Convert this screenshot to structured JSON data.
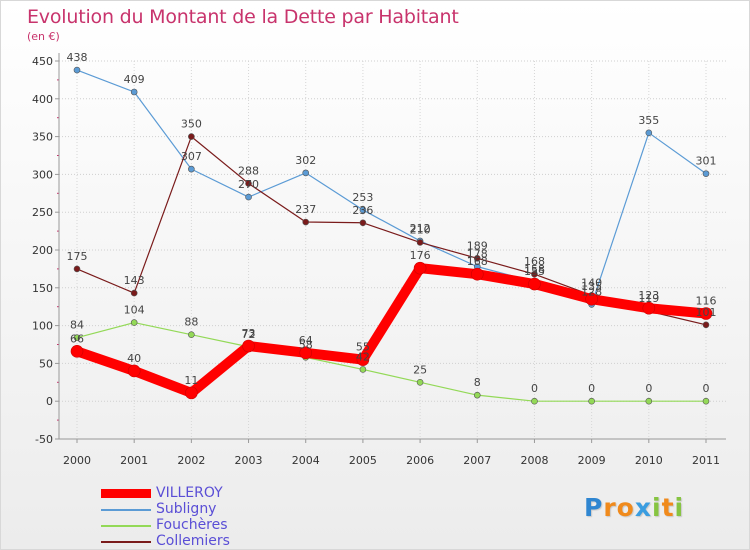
{
  "title": "Evolution du Montant de la Dette par Habitant",
  "subtitle": "(en €)",
  "logo": {
    "text": "Proxiti",
    "letters": [
      "P",
      "r",
      "o",
      "x",
      "i",
      "t",
      "i"
    ],
    "colors": [
      "#2f86d1",
      "#f08a1c",
      "#f08a1c",
      "#3a9de0",
      "#86c441",
      "#f08a1c",
      "#86c441"
    ]
  },
  "chart_data": {
    "type": "line",
    "title": "Evolution du Montant de la Dette par Habitant",
    "subtitle": "(en €)",
    "xlabel": "",
    "ylabel": "",
    "x": [
      "2000",
      "2001",
      "2002",
      "2003",
      "2004",
      "2005",
      "2006",
      "2007",
      "2008",
      "2009",
      "2010",
      "2011"
    ],
    "ylim": [
      -50,
      450
    ],
    "yticks": [
      "-50",
      "0",
      "50",
      "100",
      "150",
      "200",
      "250",
      "300",
      "350",
      "400",
      "450"
    ],
    "grid": true,
    "legend_position": "bottom-left",
    "series": [
      {
        "name": "VILLEROY",
        "color": "#ff0000",
        "thick": true,
        "values": [
          66,
          40,
          11,
          73,
          64,
          55,
          176,
          168,
          155,
          135,
          123,
          116
        ],
        "labels": [
          "66",
          "40",
          "11",
          "73",
          "64",
          "55",
          "176",
          "168",
          "155",
          "135",
          "123",
          "116"
        ]
      },
      {
        "name": "Subligny",
        "color": "#5b9bd5",
        "values": [
          438,
          409,
          307,
          270,
          302,
          253,
          212,
          178,
          158,
          128,
          355,
          301
        ],
        "labels": [
          "438",
          "409",
          "307",
          "270",
          "302",
          "253",
          "212",
          "178",
          "158",
          "128",
          "355",
          "301"
        ]
      },
      {
        "name": "Fouchères",
        "color": "#93d957",
        "values": [
          84,
          104,
          88,
          72,
          58,
          42,
          25,
          8,
          0,
          0,
          0,
          0
        ],
        "labels": [
          "84",
          "104",
          "88",
          "72",
          "58",
          "42",
          "25",
          "8",
          "0",
          "0",
          "0",
          "0"
        ]
      },
      {
        "name": "Collemiers",
        "color": "#7a1b1b",
        "values": [
          175,
          143,
          350,
          288,
          237,
          236,
          210,
          189,
          168,
          140,
          119,
          101
        ],
        "labels": [
          "175",
          "143",
          "350",
          "288",
          "237",
          "236",
          "210",
          "189",
          "168",
          "140",
          "119",
          "101"
        ]
      }
    ]
  }
}
